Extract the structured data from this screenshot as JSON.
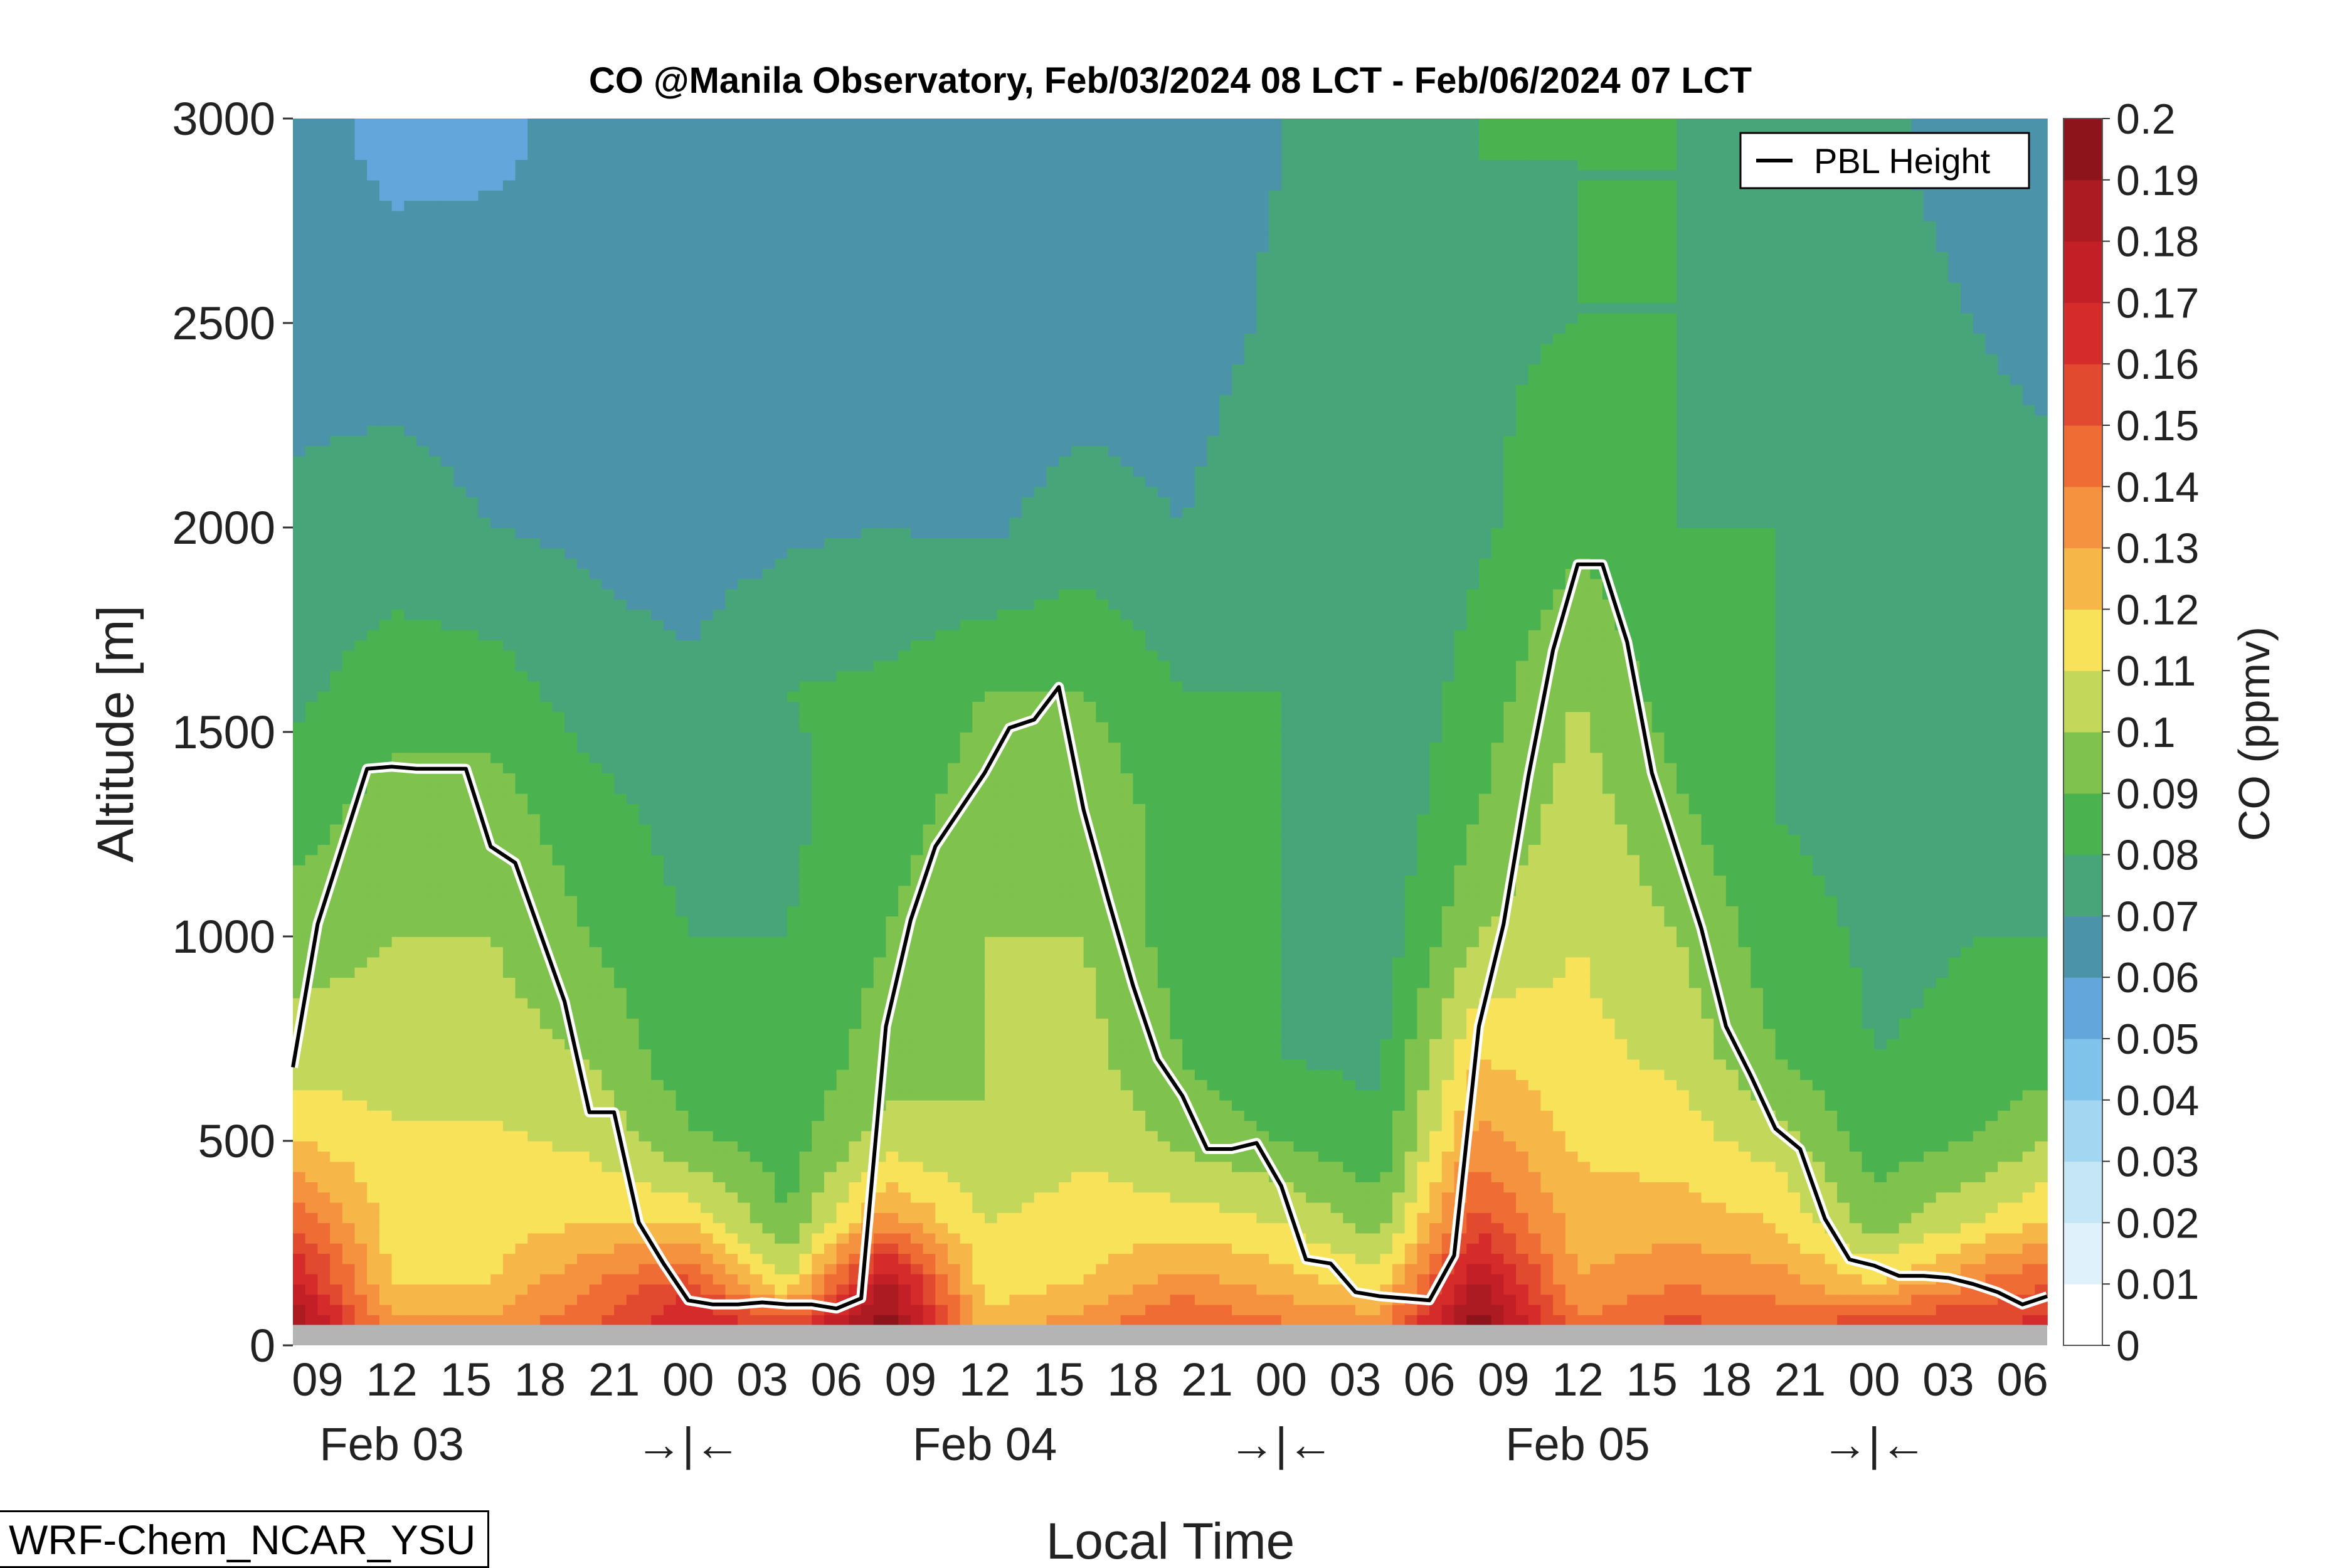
{
  "title": "CO @Manila Observatory, Feb/03/2024 08 LCT - Feb/06/2024 07 LCT",
  "model_label": "WRF-Chem_NCAR_YSU",
  "chart_data": {
    "type": "heatmap",
    "title": "CO @Manila Observatory, Feb/03/2024 08 LCT - Feb/06/2024 07 LCT",
    "xlabel": "Local Time",
    "ylabel": "Altitude [m]",
    "colorbar_label": "CO (ppmv)",
    "ylim": [
      0,
      3000
    ],
    "y_ticks": [
      0,
      500,
      1000,
      1500,
      2000,
      2500,
      3000
    ],
    "x_hour_ticks": [
      "09",
      "12",
      "15",
      "18",
      "21",
      "00",
      "03",
      "06",
      "09",
      "12",
      "15",
      "18",
      "21",
      "00",
      "03",
      "06",
      "09",
      "12",
      "15",
      "18",
      "21",
      "00",
      "03",
      "06"
    ],
    "day_labels": [
      "Feb 03",
      "Feb 04",
      "Feb 05"
    ],
    "midnight_markers": [
      "→|←",
      "→|←",
      "→|←"
    ],
    "colorbar_ticks": [
      "0",
      "0.01",
      "0.02",
      "0.03",
      "0.04",
      "0.05",
      "0.06",
      "0.07",
      "0.08",
      "0.09",
      "0.1",
      "0.11",
      "0.12",
      "0.13",
      "0.14",
      "0.15",
      "0.16",
      "0.17",
      "0.18",
      "0.19",
      "0.2"
    ],
    "colorbar_colors": [
      "#ffffff",
      "#dff1fb",
      "#c4e6f7",
      "#a3d7f1",
      "#80c3ea",
      "#62a6dc",
      "#4b93a8",
      "#48a57a",
      "#4ab350",
      "#7fc24d",
      "#c3d85a",
      "#f8e25a",
      "#f7b748",
      "#f4923f",
      "#ef6c35",
      "#e24a2f",
      "#d52b2a",
      "#c21f26",
      "#ac1a22",
      "#8c141a"
    ],
    "legend": {
      "entries": [
        "PBL Height"
      ],
      "position": "top-right"
    },
    "series": [
      {
        "name": "PBL Height",
        "x_hours": [
          0,
          1,
          2,
          3,
          4,
          5,
          6,
          7,
          8,
          9,
          10,
          11,
          12,
          13,
          14,
          15,
          16,
          17,
          18,
          19,
          20,
          21,
          22,
          23,
          24,
          25,
          26,
          27,
          28,
          29,
          30,
          31,
          32,
          33,
          34,
          35,
          36,
          37,
          38,
          39,
          40,
          41,
          42,
          43,
          44,
          45,
          46,
          47,
          48,
          49,
          50,
          51,
          52,
          53,
          54,
          55,
          56,
          57,
          58,
          59,
          60,
          61,
          62,
          63,
          64,
          65,
          66,
          67,
          68,
          69,
          70,
          71
        ],
        "values": [
          680,
          1030,
          1220,
          1410,
          1415,
          1410,
          1410,
          1410,
          1220,
          1180,
          1010,
          840,
          570,
          570,
          300,
          200,
          110,
          100,
          100,
          105,
          100,
          100,
          90,
          115,
          780,
          1040,
          1220,
          1310,
          1400,
          1510,
          1530,
          1610,
          1310,
          1090,
          880,
          700,
          610,
          480,
          480,
          495,
          390,
          210,
          200,
          130,
          120,
          115,
          110,
          220,
          780,
          1030,
          1390,
          1700,
          1910,
          1910,
          1720,
          1400,
          1210,
          1020,
          780,
          660,
          530,
          480,
          310,
          210,
          195,
          170,
          170,
          165,
          150,
          130,
          100,
          120
        ]
      }
    ],
    "co_field": {
      "description": "CO mixing ratio (ppmv) at levels vs hour index from Feb 03 08 LCT",
      "levels_m": [
        30,
        150,
        300,
        500,
        700,
        1000,
        1300,
        1600,
        2000,
        2500,
        2900
      ],
      "times_h": [
        0,
        4,
        8,
        12,
        16,
        20,
        24,
        28,
        32,
        36,
        40,
        44,
        48,
        52,
        56,
        60,
        64,
        68,
        71
      ],
      "values": [
        [
          0.195,
          0.135,
          0.135,
          0.15,
          0.175,
          0.165,
          0.2,
          0.125,
          0.14,
          0.155,
          0.145,
          0.14,
          0.2,
          0.145,
          0.155,
          0.15,
          0.165,
          0.165,
          0.165
        ],
        [
          0.175,
          0.12,
          0.12,
          0.14,
          0.155,
          0.11,
          0.185,
          0.115,
          0.12,
          0.135,
          0.125,
          0.115,
          0.185,
          0.13,
          0.14,
          0.135,
          0.12,
          0.14,
          0.15
        ],
        [
          0.15,
          0.115,
          0.115,
          0.12,
          0.12,
          0.09,
          0.135,
          0.11,
          0.115,
          0.115,
          0.11,
          0.095,
          0.155,
          0.125,
          0.125,
          0.12,
          0.095,
          0.11,
          0.12
        ],
        [
          0.12,
          0.112,
          0.112,
          0.108,
          0.092,
          0.085,
          0.105,
          0.1,
          0.108,
          0.098,
          0.09,
          0.082,
          0.135,
          0.118,
          0.115,
          0.105,
          0.085,
          0.09,
          0.1
        ],
        [
          0.105,
          0.105,
          0.105,
          0.1,
          0.083,
          0.082,
          0.095,
          0.1,
          0.104,
          0.09,
          0.08,
          0.078,
          0.12,
          0.113,
          0.108,
          0.09,
          0.08,
          0.082,
          0.085
        ],
        [
          0.095,
          0.1,
          0.1,
          0.09,
          0.08,
          0.08,
          0.09,
          0.1,
          0.1,
          0.085,
          0.08,
          0.074,
          0.1,
          0.11,
          0.1,
          0.085,
          0.078,
          0.08,
          0.08
        ],
        [
          0.085,
          0.095,
          0.095,
          0.084,
          0.076,
          0.078,
          0.085,
          0.095,
          0.1,
          0.083,
          0.08,
          0.072,
          0.09,
          0.105,
          0.092,
          0.08,
          0.076,
          0.078,
          0.08
        ],
        [
          0.078,
          0.085,
          0.085,
          0.075,
          0.072,
          0.08,
          0.082,
          0.09,
          0.09,
          0.08,
          0.08,
          0.07,
          0.085,
          0.1,
          0.085,
          0.08,
          0.075,
          0.08,
          0.08
        ],
        [
          0.072,
          0.075,
          0.07,
          0.068,
          0.065,
          0.068,
          0.07,
          0.068,
          0.075,
          0.07,
          0.078,
          0.07,
          0.078,
          0.088,
          0.08,
          0.08,
          0.075,
          0.078,
          0.075
        ],
        [
          0.066,
          0.065,
          0.064,
          0.063,
          0.063,
          0.064,
          0.063,
          0.063,
          0.063,
          0.065,
          0.072,
          0.072,
          0.078,
          0.08,
          0.08,
          0.078,
          0.075,
          0.07,
          0.065
        ],
        [
          0.064,
          0.058,
          0.059,
          0.062,
          0.063,
          0.063,
          0.063,
          0.063,
          0.063,
          0.065,
          0.07,
          0.075,
          0.08,
          0.08,
          0.08,
          0.078,
          0.072,
          0.066,
          0.062
        ]
      ]
    },
    "surface_band": true
  }
}
